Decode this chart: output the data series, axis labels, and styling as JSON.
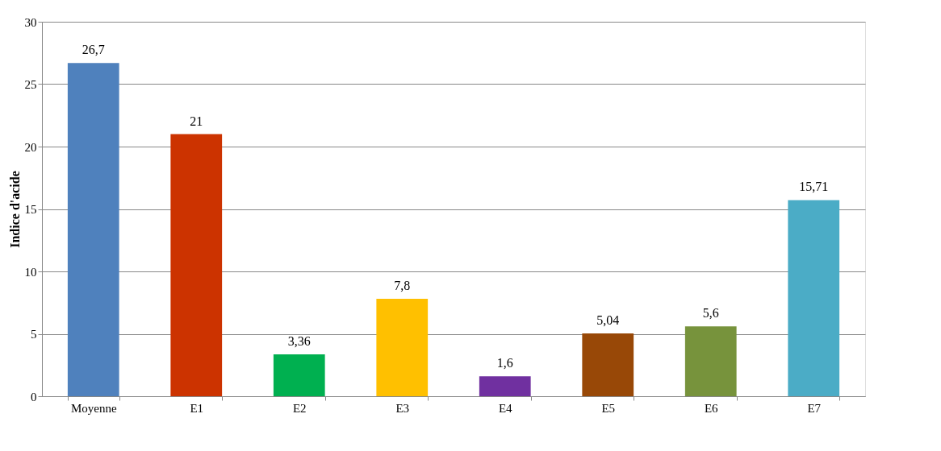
{
  "chart_data": {
    "type": "bar",
    "ylabel": "Indice d'acide",
    "categories": [
      "Moyenne",
      "E1",
      "E2",
      "E3",
      "E4",
      "E5",
      "E6",
      "E7"
    ],
    "values": [
      26.7,
      21,
      3.36,
      7.8,
      1.6,
      5.04,
      5.6,
      15.71
    ],
    "colors": [
      "#4f81bd",
      "#cc3300",
      "#00b050",
      "#ffc000",
      "#7030a0",
      "#984807",
      "#77933c",
      "#4bacc6"
    ],
    "value_labels": [
      "26,7",
      "21",
      "3,36",
      "7,8",
      "1,6",
      "5,04",
      "5,6",
      "15,71"
    ],
    "ylim": [
      0,
      30
    ],
    "yticks": [
      0,
      5,
      10,
      15,
      20,
      25,
      30
    ],
    "grid": "y"
  }
}
